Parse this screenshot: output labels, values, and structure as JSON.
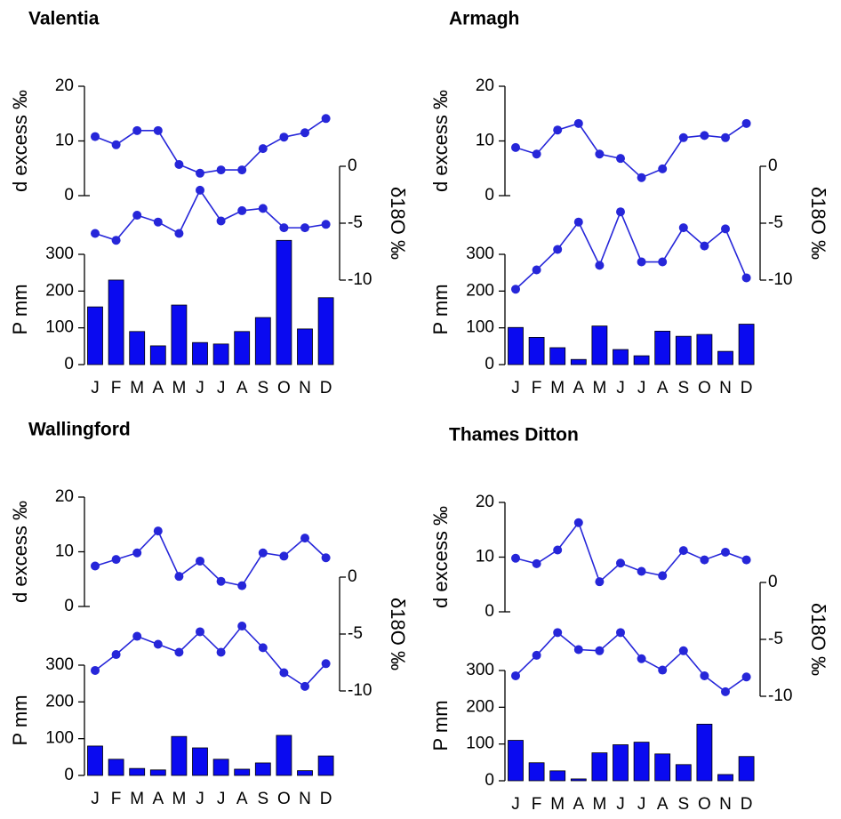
{
  "chart_data": [
    {
      "type": "combo",
      "title": "Valentia",
      "categories": [
        "J",
        "F",
        "M",
        "A",
        "M",
        "J",
        "J",
        "A",
        "S",
        "O",
        "N",
        "D"
      ],
      "ylabel": "d excess ‰",
      "ylim": [
        0,
        20
      ],
      "yticks": [
        0,
        10,
        20
      ],
      "y2label": "δ18O ‰",
      "y2lim": [
        -10,
        0
      ],
      "y2ticks": [
        0,
        -5,
        -10
      ],
      "y3label": "P mm",
      "y3lim": [
        0,
        300
      ],
      "y3ticks": [
        0,
        100,
        200,
        300
      ],
      "series": [
        {
          "type": "line",
          "color": "#2626d9",
          "values": [
            10.8,
            9.3,
            11.9,
            11.9,
            5.7,
            4.1,
            4.7,
            4.7,
            8.6,
            10.7,
            11.5,
            14.1
          ]
        },
        {
          "type": "line",
          "axis": "y2",
          "color": "#2626d9",
          "values": [
            -5.9,
            -6.5,
            -4.3,
            -4.9,
            -5.9,
            -2.1,
            -4.8,
            -3.9,
            -3.7,
            -5.4,
            -5.4,
            -5.1
          ]
        },
        {
          "type": "bar",
          "axis": "y3",
          "color": "#0a0af0",
          "values": [
            157,
            230,
            90,
            51,
            162,
            60,
            56,
            90,
            128,
            338,
            97,
            182
          ]
        }
      ]
    },
    {
      "type": "combo",
      "title": "Armagh",
      "categories": [
        "J",
        "F",
        "M",
        "A",
        "M",
        "J",
        "J",
        "A",
        "S",
        "O",
        "N",
        "D"
      ],
      "ylabel": "d excess ‰",
      "ylim": [
        0,
        20
      ],
      "yticks": [
        0,
        10,
        20
      ],
      "y2label": "δ18O ‰",
      "y2lim": [
        -10,
        0
      ],
      "y2ticks": [
        0,
        -5,
        -10
      ],
      "y3label": "P mm",
      "y3lim": [
        0,
        300
      ],
      "y3ticks": [
        0,
        100,
        200,
        300
      ],
      "series": [
        {
          "type": "line",
          "color": "#2626d9",
          "values": [
            8.8,
            7.6,
            12,
            13.2,
            7.6,
            6.8,
            3.3,
            4.9,
            10.6,
            11,
            10.6,
            13.2
          ]
        },
        {
          "type": "line",
          "axis": "y2",
          "color": "#2626d9",
          "values": [
            -10.8,
            -9.1,
            -7.3,
            -4.9,
            -8.7,
            -4.0,
            -8.4,
            -8.4,
            -5.4,
            -7.0,
            -5.5,
            -9.8
          ]
        },
        {
          "type": "bar",
          "axis": "y3",
          "color": "#0a0af0",
          "values": [
            101,
            74,
            46,
            14,
            105,
            41,
            24,
            91,
            77,
            82,
            36,
            110
          ]
        }
      ]
    },
    {
      "type": "combo",
      "title": "Wallingford",
      "categories": [
        "J",
        "F",
        "M",
        "A",
        "M",
        "J",
        "J",
        "A",
        "S",
        "O",
        "N",
        "D"
      ],
      "ylabel": "d excess ‰",
      "ylim": [
        0,
        20
      ],
      "yticks": [
        0,
        10,
        20
      ],
      "y2label": "δ18O ‰",
      "y2lim": [
        -10,
        0
      ],
      "y2ticks": [
        0,
        -5,
        -10
      ],
      "y3label": "P mm",
      "y3lim": [
        0,
        300
      ],
      "y3ticks": [
        0,
        100,
        200,
        300
      ],
      "series": [
        {
          "type": "line",
          "color": "#2626d9",
          "values": [
            7.4,
            8.6,
            9.8,
            13.8,
            5.5,
            8.3,
            4.6,
            3.8,
            9.8,
            9.2,
            12.5,
            8.9
          ]
        },
        {
          "type": "line",
          "axis": "y2",
          "color": "#2626d9",
          "values": [
            -8.2,
            -6.8,
            -5.2,
            -5.9,
            -6.6,
            -4.8,
            -6.6,
            -4.3,
            -6.2,
            -8.4,
            -9.6,
            -7.6
          ]
        },
        {
          "type": "bar",
          "axis": "y3",
          "color": "#0a0af0",
          "values": [
            80,
            44,
            19,
            15,
            106,
            75,
            44,
            17,
            34,
            109,
            13,
            53
          ]
        }
      ]
    },
    {
      "type": "combo",
      "title": "Thames Ditton",
      "categories": [
        "J",
        "F",
        "M",
        "A",
        "M",
        "J",
        "J",
        "A",
        "S",
        "O",
        "N",
        "D"
      ],
      "ylabel": "d excess ‰",
      "ylim": [
        0,
        20
      ],
      "yticks": [
        0,
        10,
        20
      ],
      "y2label": "δ18O ‰",
      "y2lim": [
        -10,
        0
      ],
      "y2ticks": [
        0,
        -5,
        -10
      ],
      "y3label": "P mm",
      "y3lim": [
        0,
        300
      ],
      "y3ticks": [
        0,
        100,
        200,
        300
      ],
      "series": [
        {
          "type": "line",
          "color": "#2626d9",
          "values": [
            9.8,
            8.8,
            11.3,
            16.3,
            5.5,
            8.9,
            7.4,
            6.6,
            11.2,
            9.5,
            10.9,
            9.5
          ]
        },
        {
          "type": "line",
          "axis": "y2",
          "color": "#2626d9",
          "values": [
            -8.2,
            -6.4,
            -4.4,
            -5.9,
            -6.0,
            -4.4,
            -6.7,
            -7.7,
            -6.0,
            -8.2,
            -9.6,
            -8.3
          ]
        },
        {
          "type": "bar",
          "axis": "y3",
          "color": "#0a0af0",
          "values": [
            110,
            49,
            27,
            5,
            76,
            98,
            105,
            73,
            44,
            154,
            17,
            66
          ]
        }
      ]
    }
  ]
}
